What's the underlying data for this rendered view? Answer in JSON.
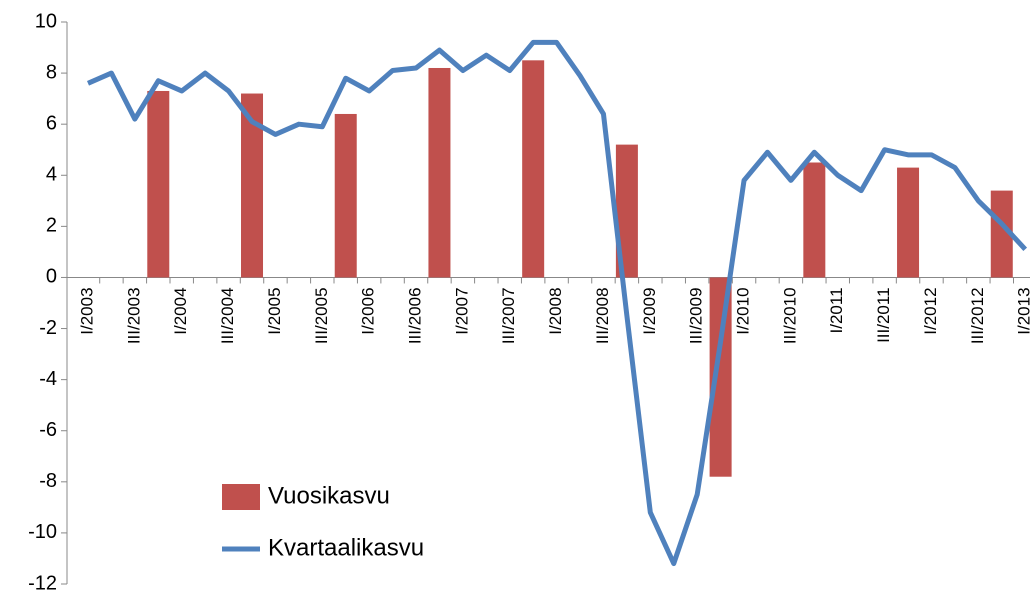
{
  "chart_data": {
    "type": "combo",
    "categories": [
      "I/2003",
      null,
      "III/2003",
      null,
      "I/2004",
      null,
      "III/2004",
      null,
      "I/2005",
      null,
      "III/2005",
      null,
      "I/2006",
      null,
      "III/2006",
      null,
      "I/2007",
      null,
      "III/2007",
      null,
      "I/2008",
      null,
      "III/2008",
      null,
      "I/2009",
      null,
      "III/2009",
      null,
      "I/2010",
      null,
      "III/2010",
      null,
      "I/2011",
      null,
      "III/2011",
      null,
      "I/2012",
      null,
      "III/2012",
      null,
      "I/2013"
    ],
    "series": [
      {
        "name": "Vuosikasvu",
        "type": "bar",
        "color": "#c0504d",
        "values": [
          null,
          null,
          null,
          7.3,
          null,
          null,
          null,
          7.2,
          null,
          null,
          null,
          6.4,
          null,
          null,
          null,
          8.2,
          null,
          null,
          null,
          8.5,
          null,
          null,
          null,
          5.2,
          null,
          null,
          null,
          -7.8,
          null,
          null,
          null,
          4.5,
          null,
          null,
          null,
          4.3,
          null,
          null,
          null,
          3.4,
          null
        ]
      },
      {
        "name": "Kvartaalikasvu",
        "type": "line",
        "color": "#4f81bd",
        "values": [
          7.6,
          8.0,
          6.2,
          7.7,
          7.3,
          8.0,
          7.3,
          6.1,
          5.6,
          6.0,
          5.9,
          7.8,
          7.3,
          8.1,
          8.2,
          8.9,
          8.1,
          8.7,
          8.1,
          9.2,
          9.2,
          7.9,
          6.4,
          -1.5,
          -9.2,
          -11.2,
          -8.5,
          -2.5,
          3.8,
          4.9,
          3.8,
          4.9,
          4.0,
          3.4,
          5.0,
          4.8,
          4.8,
          4.3,
          3.0,
          2.1,
          1.1
        ]
      }
    ],
    "ylim": [
      -12,
      10
    ],
    "yticks": [
      -12,
      -10,
      -8,
      -6,
      -4,
      -2,
      0,
      2,
      4,
      6,
      8,
      10
    ],
    "grid": false,
    "legend": "lower left"
  }
}
